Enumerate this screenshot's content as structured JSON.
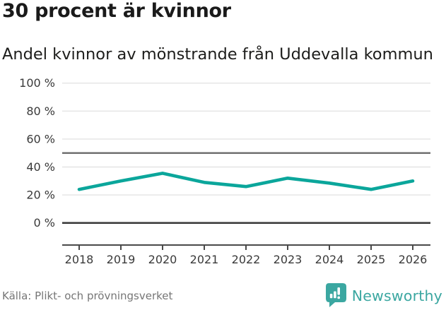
{
  "header": {
    "title": "30 procent är kvinnor",
    "subtitle": "Andel kvinnor av mönstrande från Uddevalla kommun"
  },
  "footer": {
    "source": "Källa: Plikt- och prövningsverket",
    "brand_name": "Newsworthy"
  },
  "colors": {
    "line": "#0ba69b",
    "grid": "#e4e4e4",
    "reference_line": "#6a6a6a",
    "zero_line": "#3d3d3d",
    "axis": "#4a4a4a",
    "axis_label": "#3a3a3a",
    "title_text": "#1a1a1a",
    "source_text": "#767676",
    "brand_teal": "#3ba7a1"
  },
  "chart_data": {
    "type": "line",
    "title": "30 procent är kvinnor",
    "subtitle": "Andel kvinnor av mönstrande från Uddevalla kommun",
    "x": [
      2018,
      2019,
      2020,
      2021,
      2022,
      2023,
      2024,
      2025,
      2026
    ],
    "series": [
      {
        "name": "Andel kvinnor av mönstrande",
        "values": [
          24,
          30,
          35.5,
          29,
          26,
          32,
          28.5,
          24,
          30
        ]
      }
    ],
    "xlabel": "",
    "ylabel": "",
    "ylim": [
      0,
      100
    ],
    "y_ticks": [
      0,
      20,
      40,
      60,
      80,
      100
    ],
    "y_tick_suffix": " %",
    "reference_line": 50,
    "grid": true,
    "legend": "none",
    "source": "Källa: Plikt- och prövningsverket"
  }
}
